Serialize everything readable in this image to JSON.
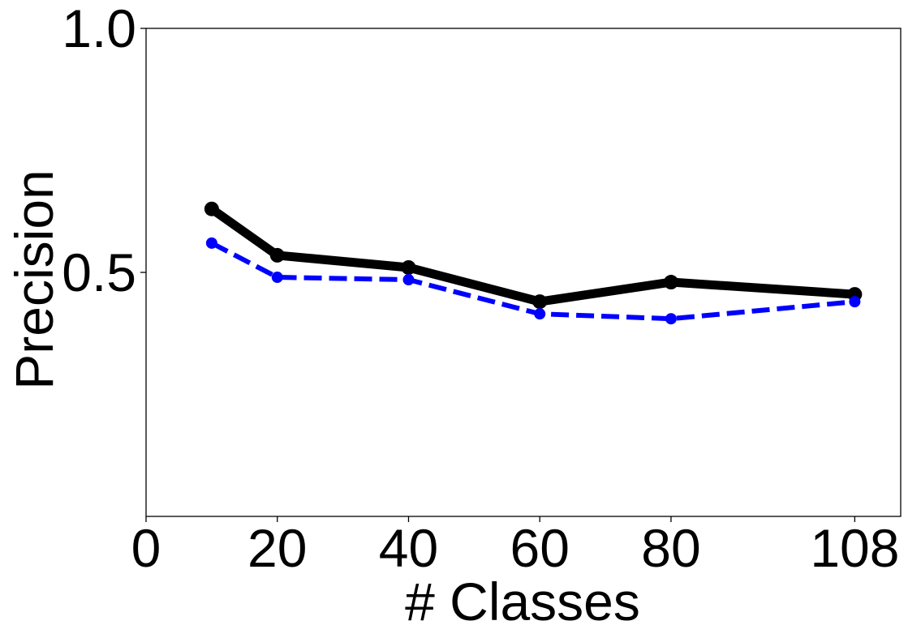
{
  "chart_data": {
    "type": "line",
    "title": "",
    "xlabel": "# Classes",
    "ylabel": "Precision",
    "xlim": [
      0,
      115
    ],
    "ylim": [
      0.0,
      1.0
    ],
    "xticks": [
      0,
      20,
      40,
      60,
      80,
      108
    ],
    "xtick_labels": [
      "0",
      "20",
      "40",
      "60",
      "80",
      "108"
    ],
    "yticks": [
      0.5,
      1.0
    ],
    "ytick_labels": [
      "0.5",
      "1.0"
    ],
    "grid": false,
    "legend": "none",
    "x": [
      10,
      20,
      40,
      60,
      80,
      108
    ],
    "series": [
      {
        "values": [
          0.63,
          0.535,
          0.51,
          0.44,
          0.48,
          0.455
        ],
        "color": "#000000",
        "style": "solid"
      },
      {
        "values": [
          0.56,
          0.49,
          0.485,
          0.415,
          0.405,
          0.44
        ],
        "color": "#0000ff",
        "style": "dashed"
      }
    ]
  }
}
